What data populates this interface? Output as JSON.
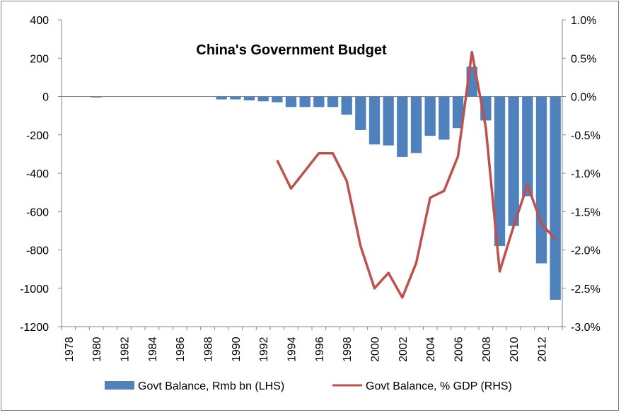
{
  "chart_data": {
    "type": "bar",
    "title": "China's Government Budget",
    "categories": [
      "1978",
      "1979",
      "1980",
      "1981",
      "1982",
      "1983",
      "1984",
      "1985",
      "1986",
      "1987",
      "1988",
      "1989",
      "1990",
      "1991",
      "1992",
      "1993",
      "1994",
      "1995",
      "1996",
      "1997",
      "1998",
      "1999",
      "2000",
      "2001",
      "2002",
      "2003",
      "2004",
      "2005",
      "2006",
      "2007",
      "2008",
      "2009",
      "2010",
      "2011",
      "2012",
      "2013"
    ],
    "x_tick_labels": [
      "1978",
      "1980",
      "1982",
      "1984",
      "1986",
      "1988",
      "1990",
      "1992",
      "1994",
      "1996",
      "1998",
      "2000",
      "2002",
      "2004",
      "2006",
      "2008",
      "2010",
      "2012"
    ],
    "left_axis": {
      "ylim": [
        -1200,
        400
      ],
      "ticks": [
        "400",
        "200",
        "0",
        "-200",
        "-400",
        "-600",
        "-800",
        "-1000",
        "-1200"
      ],
      "tick_values": [
        400,
        200,
        0,
        -200,
        -400,
        -600,
        -800,
        -1000,
        -1200
      ]
    },
    "right_axis": {
      "ylim": [
        -3.0,
        1.0
      ],
      "ticks": [
        "1.0%",
        "0.5%",
        "0.0%",
        "-0.5%",
        "-1.0%",
        "-1.5%",
        "-2.0%",
        "-2.5%",
        "-3.0%"
      ],
      "tick_values": [
        1.0,
        0.5,
        0.0,
        -0.5,
        -1.0,
        -1.5,
        -2.0,
        -2.5,
        -3.0
      ]
    },
    "series": [
      {
        "name": "Govt Balance, Rmb bn (LHS)",
        "type": "bar",
        "axis": "left",
        "color": "#4f81bd",
        "values": [
          null,
          null,
          -5,
          null,
          null,
          null,
          null,
          null,
          null,
          null,
          null,
          -15,
          -15,
          -20,
          -25,
          -30,
          -55,
          -55,
          -55,
          -55,
          -95,
          -175,
          -250,
          -255,
          -315,
          -295,
          -205,
          -225,
          -165,
          155,
          -125,
          -780,
          -675,
          -520,
          -870,
          -1060
        ]
      },
      {
        "name": "Govt Balance, % GDP (RHS)",
        "type": "line",
        "axis": "right",
        "color": "#c0504d",
        "values": [
          null,
          null,
          null,
          null,
          null,
          null,
          null,
          null,
          null,
          null,
          null,
          null,
          null,
          null,
          null,
          -0.83,
          -1.2,
          -0.97,
          -0.74,
          -0.74,
          -1.1,
          -1.95,
          -2.5,
          -2.3,
          -2.62,
          -2.17,
          -1.32,
          -1.23,
          -0.78,
          0.58,
          -0.4,
          -2.28,
          -1.69,
          -1.15,
          -1.66,
          -1.86
        ]
      }
    ],
    "grid": false,
    "legend": "bottom"
  }
}
